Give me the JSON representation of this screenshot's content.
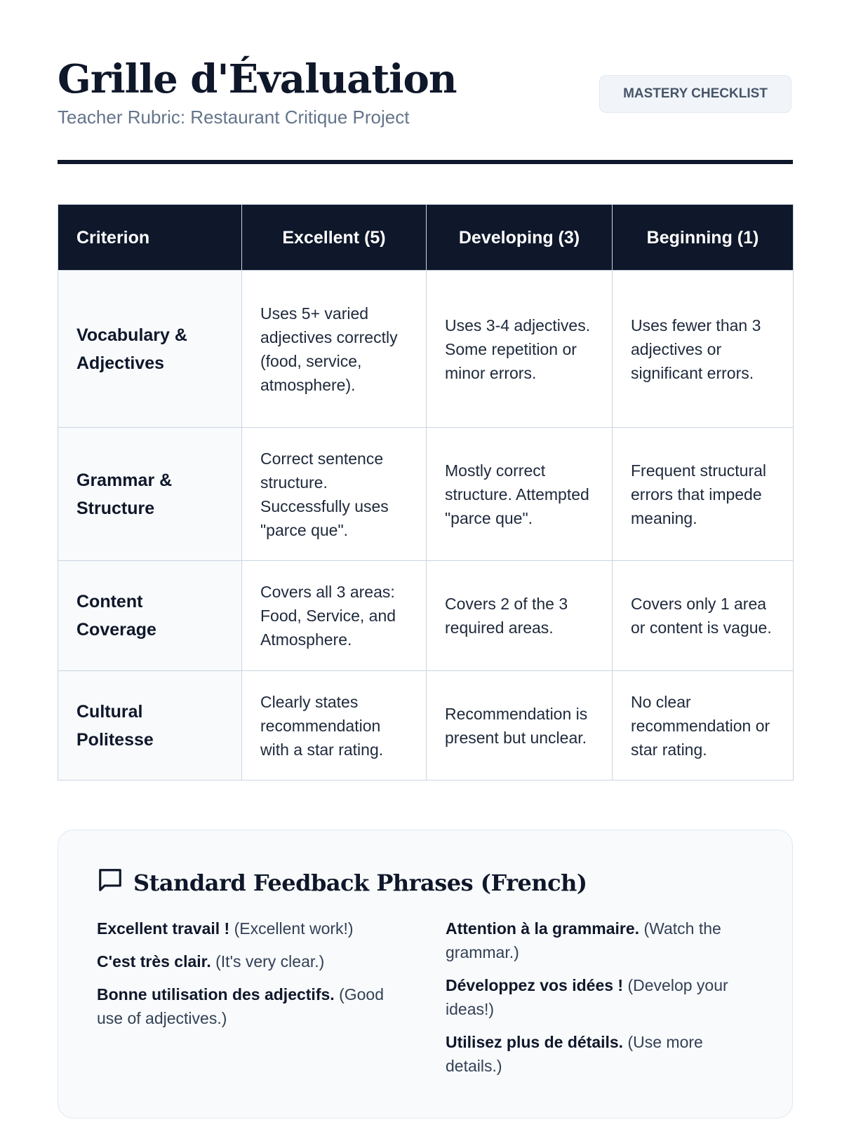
{
  "header": {
    "title": "Grille d'Évaluation",
    "subtitle": "Teacher Rubric: Restaurant Critique Project",
    "badge": "MASTERY CHECKLIST"
  },
  "table": {
    "headers": [
      "Criterion",
      "Excellent (5)",
      "Developing (3)",
      "Beginning (1)"
    ],
    "rows": [
      {
        "criterion": "Vocabulary & Adjectives",
        "excellent": "Uses 5+ varied adjectives correctly (food, service, atmosphere).",
        "developing": "Uses 3-4 adjectives. Some repetition or minor errors.",
        "beginning": "Uses fewer than 3 adjectives or significant errors."
      },
      {
        "criterion": "Grammar & Structure",
        "excellent": "Correct sentence structure. Successfully uses \"parce que\".",
        "developing": "Mostly correct structure. Attempted \"parce que\".",
        "beginning": "Frequent structural errors that impede meaning."
      },
      {
        "criterion": "Content Coverage",
        "excellent": "Covers all 3 areas: Food, Service, and Atmosphere.",
        "developing": "Covers 2 of the 3 required areas.",
        "beginning": "Covers only 1 area or content is vague."
      },
      {
        "criterion": "Cultural Politesse",
        "excellent": "Clearly states recommendation with a star rating.",
        "developing": "Recommendation is present but unclear.",
        "beginning": "No clear recommendation or star rating."
      }
    ]
  },
  "feedback": {
    "icon": "speech-bubble-icon",
    "title": "Standard Feedback Phrases (French)",
    "left": [
      {
        "fr": "Excellent travail !",
        "en": "(Excellent work!)"
      },
      {
        "fr": "C'est très clair.",
        "en": "(It's very clear.)"
      },
      {
        "fr": "Bonne utilisation des adjectifs.",
        "en": "(Good use of adjectives.)"
      }
    ],
    "right": [
      {
        "fr": "Attention à la grammaire.",
        "en": "(Watch the grammar.)"
      },
      {
        "fr": "Développez vos idées !",
        "en": "(Develop your ideas!)"
      },
      {
        "fr": "Utilisez plus de détails.",
        "en": "(Use more details.)"
      }
    ]
  },
  "colors": {
    "primary": "#0f172a",
    "muted": "#64748b",
    "border": "#cbd5e1",
    "panel": "#f8fafc"
  }
}
